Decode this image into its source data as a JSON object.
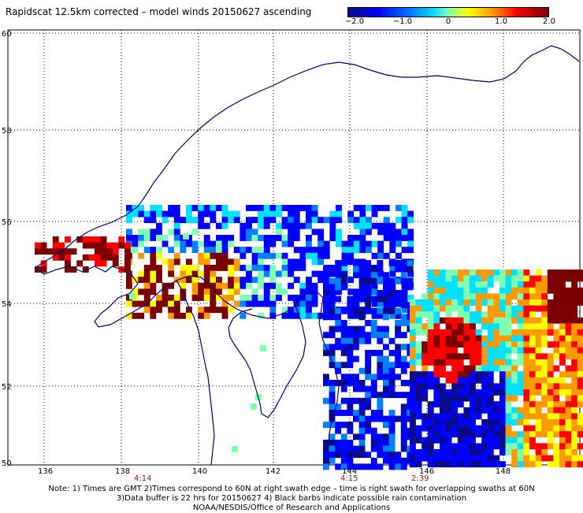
{
  "title": "Rapidscat 12.5km corrected – model winds 20150627 ascending",
  "colorbar": {
    "labels": [
      "−2.0",
      "−1.0",
      "0",
      "1.0",
      "2.0"
    ],
    "colors": [
      "#0a0a8a",
      "#0000ff",
      "#0080ff",
      "#00e0ff",
      "#80ffb0",
      "#ffff00",
      "#ff9900",
      "#ff0000",
      "#7a0000"
    ]
  },
  "axes": {
    "lon_labels": [
      "136",
      "138",
      "140",
      "142",
      "144",
      "146",
      "148"
    ],
    "lat_labels": [
      "50",
      "52",
      "54",
      "56",
      "58",
      "60"
    ]
  },
  "time_labels": [
    {
      "text": "4:14",
      "lon": 138.5
    },
    {
      "text": "4:15",
      "lon": 144.0
    },
    {
      "text": "2:39",
      "lon": 145.6
    }
  ],
  "notes": [
    "Note: 1) Times are GMT 2)Times correspond to 60N at right swath edge – time is right swath for overlapping swaths at 60N",
    "3)Data buffer is 22 hrs for 20150627 4) Black barbs indicate possible rain contamination",
    "NOAA/NESDIS/Office of Research and Applications"
  ]
}
